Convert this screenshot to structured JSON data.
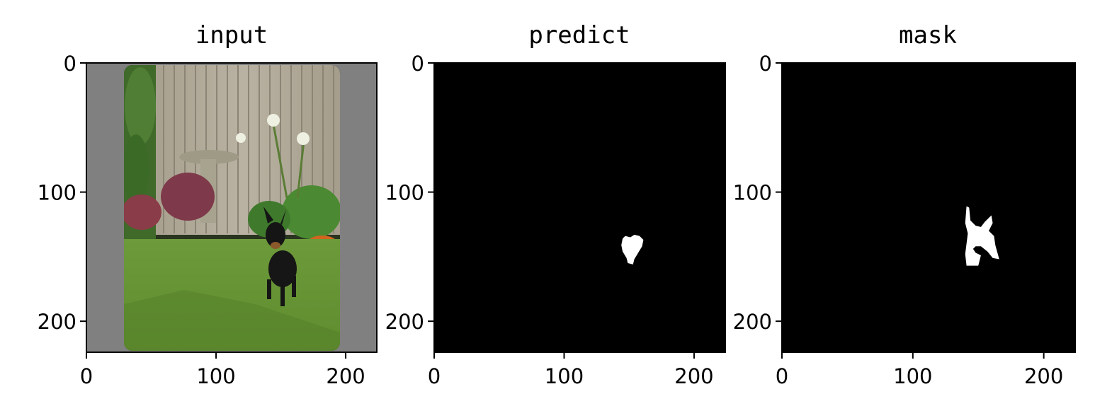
{
  "chart_data": [
    {
      "type": "image",
      "title": "input",
      "image": "dog-in-garden-photo",
      "xlim": [
        0,
        224
      ],
      "ylim": [
        224,
        0
      ],
      "xticks": [
        0,
        100,
        200
      ],
      "yticks": [
        0,
        100,
        200
      ],
      "xtick_labels": [
        "0",
        "100",
        "200"
      ],
      "ytick_labels": [
        "0",
        "100",
        "200"
      ],
      "padding_color": "#808080"
    },
    {
      "type": "image",
      "title": "predict",
      "image": "binary-mask",
      "xlim": [
        0,
        224
      ],
      "ylim": [
        224,
        0
      ],
      "xticks": [
        0,
        100,
        200
      ],
      "yticks": [
        0,
        100,
        200
      ],
      "xtick_labels": [
        "0",
        "100",
        "200"
      ],
      "ytick_labels": [
        "0",
        "100",
        "200"
      ],
      "background_color": "#000000",
      "foreground_color": "#ffffff",
      "blob": [
        [
          147,
          134
        ],
        [
          151,
          135
        ],
        [
          154,
          133
        ],
        [
          158,
          134
        ],
        [
          161,
          137
        ],
        [
          160,
          142
        ],
        [
          157,
          147
        ],
        [
          154,
          152
        ],
        [
          153,
          156
        ],
        [
          149,
          155
        ],
        [
          148,
          151
        ],
        [
          145,
          146
        ],
        [
          144,
          141
        ],
        [
          145,
          136
        ]
      ]
    },
    {
      "type": "image",
      "title": "mask",
      "image": "binary-mask",
      "xlim": [
        0,
        224
      ],
      "ylim": [
        224,
        0
      ],
      "xticks": [
        0,
        100,
        200
      ],
      "yticks": [
        0,
        100,
        200
      ],
      "xtick_labels": [
        "0",
        "100",
        "200"
      ],
      "ytick_labels": [
        "0",
        "100",
        "200"
      ],
      "background_color": "#000000",
      "foreground_color": "#ffffff",
      "blob": [
        [
          141,
          111
        ],
        [
          143,
          112
        ],
        [
          144,
          122
        ],
        [
          148,
          126
        ],
        [
          152,
          127
        ],
        [
          155,
          123
        ],
        [
          160,
          118
        ],
        [
          161,
          124
        ],
        [
          158,
          130
        ],
        [
          162,
          134
        ],
        [
          163,
          141
        ],
        [
          166,
          152
        ],
        [
          161,
          151
        ],
        [
          157,
          146
        ],
        [
          152,
          142
        ],
        [
          148,
          142
        ],
        [
          146,
          144
        ],
        [
          148,
          147
        ],
        [
          152,
          149
        ],
        [
          150,
          157
        ],
        [
          141,
          157
        ],
        [
          140,
          148
        ],
        [
          141,
          140
        ],
        [
          142,
          132
        ],
        [
          140,
          124
        ]
      ]
    }
  ]
}
